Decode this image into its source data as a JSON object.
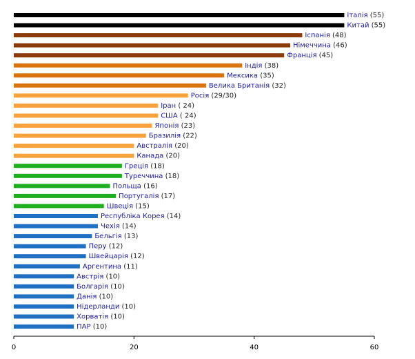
{
  "chart_data": {
    "type": "bar",
    "orientation": "horizontal",
    "categories": [
      "Італія",
      "Китай",
      "Іспанія",
      "Німеччина",
      "Франція",
      "Індія",
      "Мексика",
      "Велика Британія",
      "Росія",
      "Іран",
      "США",
      "Японія",
      "Бразилія",
      "Австралія",
      "Канада",
      "Греція",
      "Туреччина",
      "Польща",
      "Португалія",
      "Швеція",
      "Республіка Корея",
      "Чехія",
      "Бельгія",
      "Перу",
      "Швейцарія",
      "Аргентина",
      "Австрія",
      "Болгарія",
      "Данія",
      "Нідерланди",
      "Хорватія",
      "ПАР"
    ],
    "values": [
      55,
      55,
      48,
      46,
      45,
      38,
      35,
      32,
      29,
      24,
      24,
      23,
      22,
      20,
      20,
      18,
      18,
      16,
      17,
      15,
      14,
      14,
      13,
      12,
      12,
      11,
      10,
      10,
      10,
      10,
      10,
      10
    ],
    "value_labels": [
      "(55)",
      "(55)",
      "(48)",
      "(46)",
      "(45)",
      "(38)",
      "(35)",
      "(32)",
      "(29/30)",
      "( 24)",
      "( 24)",
      "(23)",
      "(22)",
      "(20)",
      "(20)",
      "(18)",
      "(18)",
      "(16)",
      "(17)",
      "(15)",
      "(14)",
      "(14)",
      "(13)",
      "(12)",
      "(12)",
      "(11)",
      "(10)",
      "(10)",
      "(10)",
      "(10)",
      "(10)",
      "(10)"
    ],
    "colors": [
      "#000000",
      "#000000",
      "#8b3a0a",
      "#8b3a0a",
      "#8b3a0a",
      "#d9730d",
      "#d9730d",
      "#d9730d",
      "#f7a23c",
      "#f7a23c",
      "#f7a23c",
      "#f7a23c",
      "#f7a23c",
      "#f7a23c",
      "#f7a23c",
      "#1fae1f",
      "#1fae1f",
      "#1fae1f",
      "#1fae1f",
      "#1fae1f",
      "#1f6fc2",
      "#1f6fc2",
      "#1f6fc2",
      "#1f6fc2",
      "#1f6fc2",
      "#1f6fc2",
      "#1f6fc2",
      "#1f6fc2",
      "#1f6fc2",
      "#1f6fc2",
      "#1f6fc2",
      "#1f6fc2"
    ],
    "xlim": [
      0,
      60
    ],
    "xticks": [
      0,
      20,
      40,
      60
    ],
    "grid": false
  }
}
